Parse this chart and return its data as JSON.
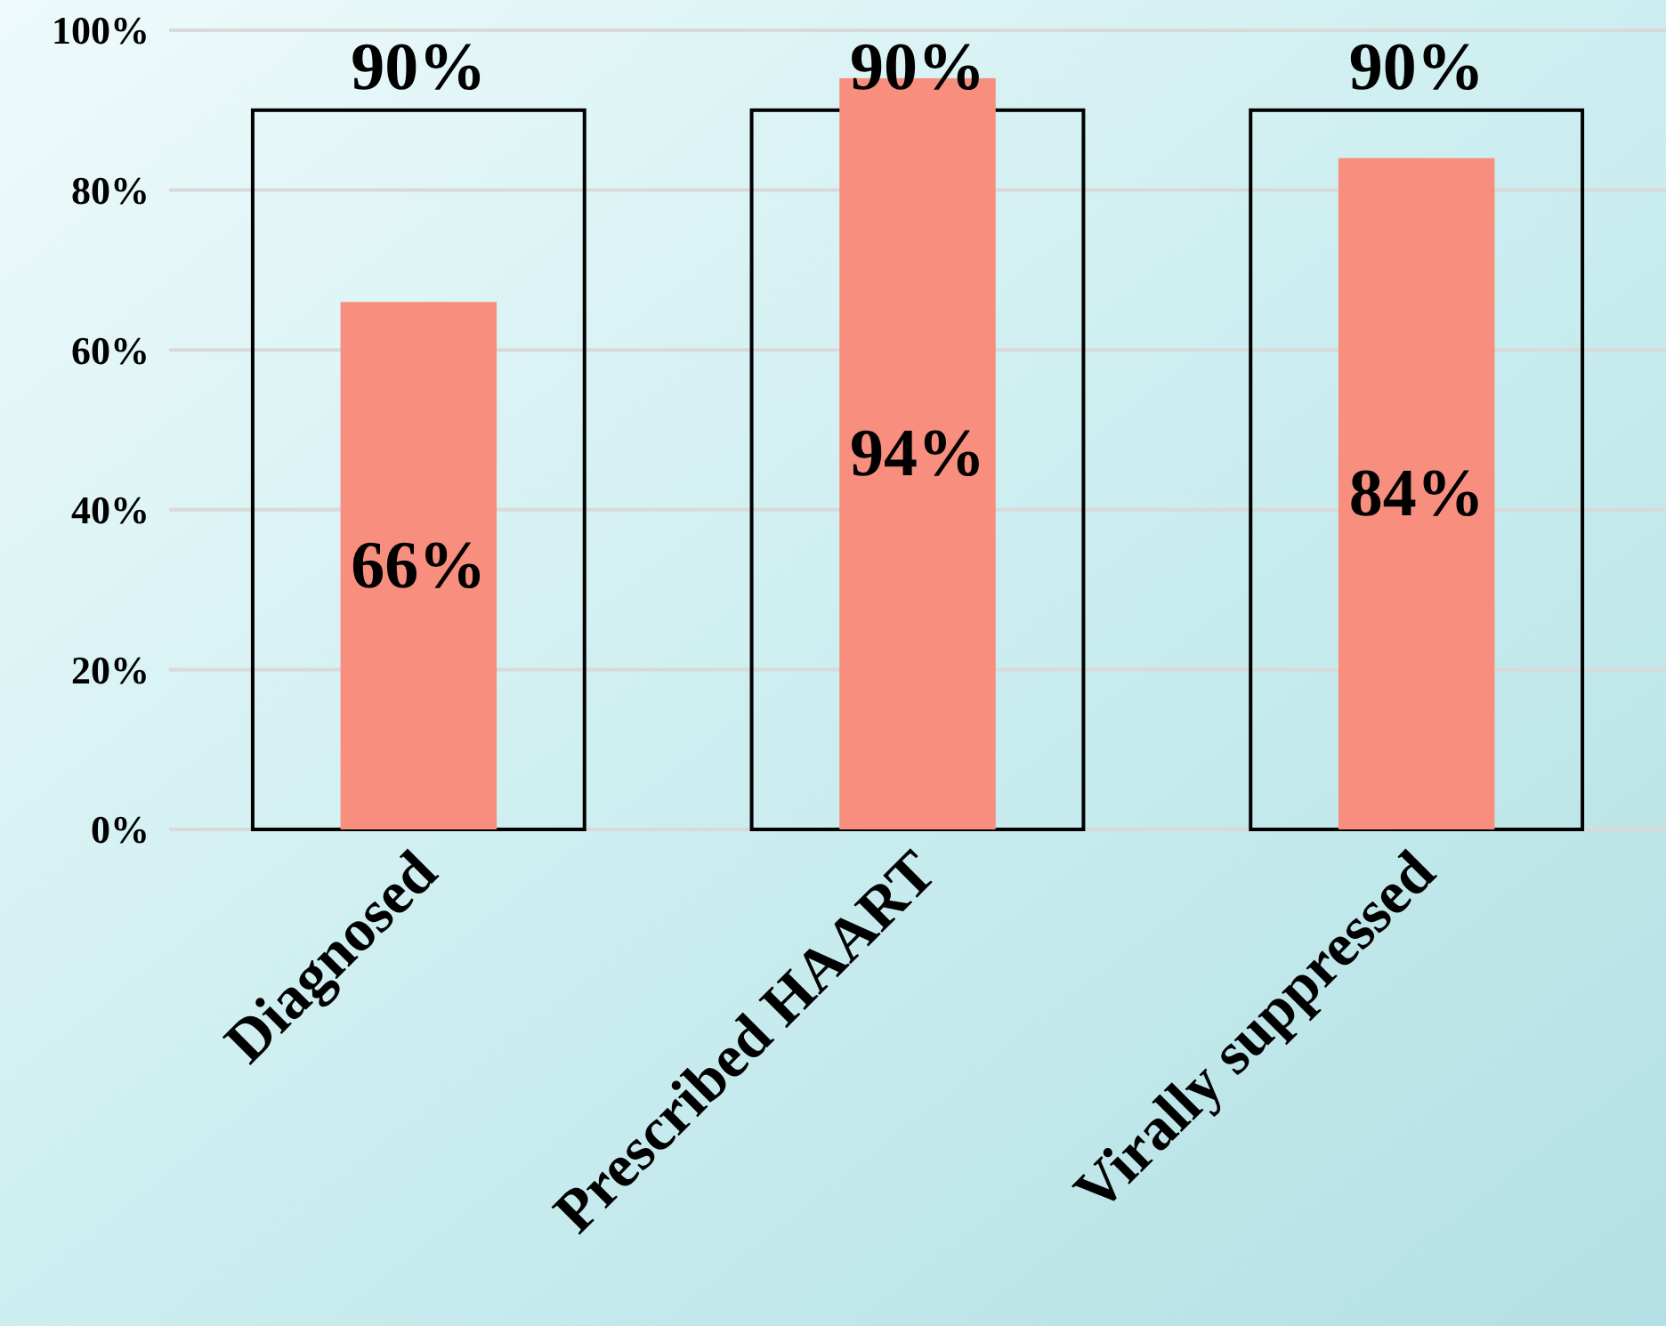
{
  "chart_data": {
    "type": "bar",
    "categories": [
      "Diagnosed",
      "Prescribed HAART",
      "Virally suppressed"
    ],
    "series": [
      {
        "color": "#000000",
        "values": [
          90,
          90,
          90
        ],
        "value_labels": [
          "90%",
          "90%",
          "90%"
        ]
      },
      {
        "color": "#f78e7e",
        "values": [
          66,
          94,
          84
        ],
        "value_labels": [
          "66%",
          "94%",
          "84%"
        ]
      }
    ],
    "ylim": [
      0,
      100
    ],
    "yticks": [
      {
        "value": 0,
        "label": "0%"
      },
      {
        "value": 20,
        "label": "20%"
      },
      {
        "value": 40,
        "label": "40%"
      },
      {
        "value": 60,
        "label": "60%"
      },
      {
        "value": 80,
        "label": "80%"
      },
      {
        "value": 100,
        "label": "100%"
      }
    ],
    "grid": "y"
  }
}
